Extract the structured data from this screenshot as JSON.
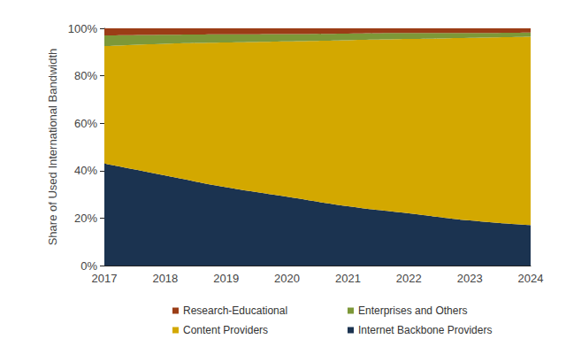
{
  "chart_data": {
    "type": "area",
    "stacked": true,
    "grid": false,
    "legend": "bottom",
    "y_label": "Share of Used International Bandwidth",
    "categories": [
      "2017",
      "2018",
      "2019",
      "2020",
      "2021",
      "2022",
      "2023",
      "2024"
    ],
    "ylim": [
      0,
      100
    ],
    "yticks": [
      {
        "value": 0,
        "label": "0%"
      },
      {
        "value": 20,
        "label": "20%"
      },
      {
        "value": 40,
        "label": "40%"
      },
      {
        "value": 60,
        "label": "60%"
      },
      {
        "value": 80,
        "label": "80%"
      },
      {
        "value": 100,
        "label": "100%"
      }
    ],
    "series": [
      {
        "name": "Research-Educational",
        "color": "#9b3d16",
        "values": [
          3,
          2.7,
          2.5,
          2.4,
          2.2,
          2,
          2,
          1.8
        ]
      },
      {
        "name": "Enterprises and Others",
        "color": "#7d9838",
        "values": [
          4.5,
          3.8,
          3.5,
          3.1,
          2.8,
          2.5,
          2,
          1.7
        ]
      },
      {
        "name": "Content Providers",
        "color": "#d3a800",
        "values": [
          49.5,
          55.5,
          61,
          65.5,
          70,
          73.5,
          77,
          79.5
        ]
      },
      {
        "name": "Internet Backbone Providers",
        "color": "#1b3350",
        "values": [
          43,
          38,
          33,
          29,
          25,
          22,
          19,
          17
        ]
      }
    ]
  }
}
